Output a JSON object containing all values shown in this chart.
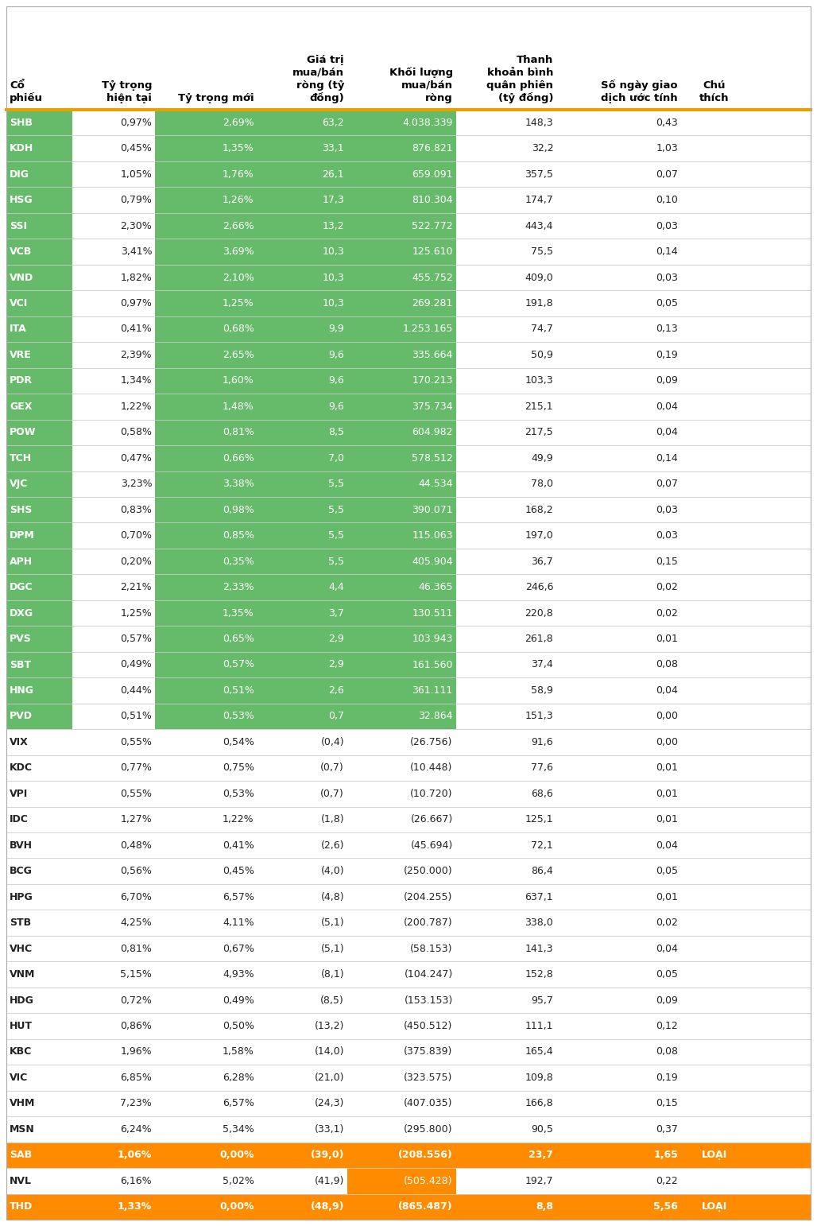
{
  "headers_line1": [
    "",
    "",
    "",
    "Giá trị",
    "",
    "Thanh",
    "",
    ""
  ],
  "headers_line2": [
    "",
    "",
    "",
    "mua/bán",
    "Khối lượng",
    "khoản bình",
    "",
    ""
  ],
  "headers_line3": [
    "Cổ",
    "Tỷ trọng",
    "",
    "ròng (tỷ",
    "mua/bán",
    "quân phiên",
    "Số ngày giao",
    "Chú"
  ],
  "headers_line4": [
    "phiếu",
    "hiện tại",
    "Tỷ trọng mới",
    "đồng)",
    "ròng",
    "(tỷ đồng)",
    "dịch ước tính",
    "thích"
  ],
  "rows": [
    [
      "SHB",
      "0,97%",
      "2,69%",
      "63,2",
      "4.038.339",
      "148,3",
      "0,43",
      "",
      "green"
    ],
    [
      "KDH",
      "0,45%",
      "1,35%",
      "33,1",
      "876.821",
      "32,2",
      "1,03",
      "",
      "green"
    ],
    [
      "DIG",
      "1,05%",
      "1,76%",
      "26,1",
      "659.091",
      "357,5",
      "0,07",
      "",
      "green"
    ],
    [
      "HSG",
      "0,79%",
      "1,26%",
      "17,3",
      "810.304",
      "174,7",
      "0,10",
      "",
      "green"
    ],
    [
      "SSI",
      "2,30%",
      "2,66%",
      "13,2",
      "522.772",
      "443,4",
      "0,03",
      "",
      "green"
    ],
    [
      "VCB",
      "3,41%",
      "3,69%",
      "10,3",
      "125.610",
      "75,5",
      "0,14",
      "",
      "green"
    ],
    [
      "VND",
      "1,82%",
      "2,10%",
      "10,3",
      "455.752",
      "409,0",
      "0,03",
      "",
      "green"
    ],
    [
      "VCI",
      "0,97%",
      "1,25%",
      "10,3",
      "269.281",
      "191,8",
      "0,05",
      "",
      "green"
    ],
    [
      "ITA",
      "0,41%",
      "0,68%",
      "9,9",
      "1.253.165",
      "74,7",
      "0,13",
      "",
      "green"
    ],
    [
      "VRE",
      "2,39%",
      "2,65%",
      "9,6",
      "335.664",
      "50,9",
      "0,19",
      "",
      "green"
    ],
    [
      "PDR",
      "1,34%",
      "1,60%",
      "9,6",
      "170.213",
      "103,3",
      "0,09",
      "",
      "green"
    ],
    [
      "GEX",
      "1,22%",
      "1,48%",
      "9,6",
      "375.734",
      "215,1",
      "0,04",
      "",
      "green"
    ],
    [
      "POW",
      "0,58%",
      "0,81%",
      "8,5",
      "604.982",
      "217,5",
      "0,04",
      "",
      "green"
    ],
    [
      "TCH",
      "0,47%",
      "0,66%",
      "7,0",
      "578.512",
      "49,9",
      "0,14",
      "",
      "green"
    ],
    [
      "VJC",
      "3,23%",
      "3,38%",
      "5,5",
      "44.534",
      "78,0",
      "0,07",
      "",
      "green"
    ],
    [
      "SHS",
      "0,83%",
      "0,98%",
      "5,5",
      "390.071",
      "168,2",
      "0,03",
      "",
      "green"
    ],
    [
      "DPM",
      "0,70%",
      "0,85%",
      "5,5",
      "115.063",
      "197,0",
      "0,03",
      "",
      "green"
    ],
    [
      "APH",
      "0,20%",
      "0,35%",
      "5,5",
      "405.904",
      "36,7",
      "0,15",
      "",
      "green"
    ],
    [
      "DGC",
      "2,21%",
      "2,33%",
      "4,4",
      "46.365",
      "246,6",
      "0,02",
      "",
      "green"
    ],
    [
      "DXG",
      "1,25%",
      "1,35%",
      "3,7",
      "130.511",
      "220,8",
      "0,02",
      "",
      "green"
    ],
    [
      "PVS",
      "0,57%",
      "0,65%",
      "2,9",
      "103.943",
      "261,8",
      "0,01",
      "",
      "green"
    ],
    [
      "SBT",
      "0,49%",
      "0,57%",
      "2,9",
      "161.560",
      "37,4",
      "0,08",
      "",
      "green"
    ],
    [
      "HNG",
      "0,44%",
      "0,51%",
      "2,6",
      "361.111",
      "58,9",
      "0,04",
      "",
      "green"
    ],
    [
      "PVD",
      "0,51%",
      "0,53%",
      "0,7",
      "32.864",
      "151,3",
      "0,00",
      "",
      "green"
    ],
    [
      "VIX",
      "0,55%",
      "0,54%",
      "(0,4)",
      "(26.756)",
      "91,6",
      "0,00",
      "",
      "white"
    ],
    [
      "KDC",
      "0,77%",
      "0,75%",
      "(0,7)",
      "(10.448)",
      "77,6",
      "0,01",
      "",
      "white"
    ],
    [
      "VPI",
      "0,55%",
      "0,53%",
      "(0,7)",
      "(10.720)",
      "68,6",
      "0,01",
      "",
      "white"
    ],
    [
      "IDC",
      "1,27%",
      "1,22%",
      "(1,8)",
      "(26.667)",
      "125,1",
      "0,01",
      "",
      "white"
    ],
    [
      "BVH",
      "0,48%",
      "0,41%",
      "(2,6)",
      "(45.694)",
      "72,1",
      "0,04",
      "",
      "white"
    ],
    [
      "BCG",
      "0,56%",
      "0,45%",
      "(4,0)",
      "(250.000)",
      "86,4",
      "0,05",
      "",
      "white"
    ],
    [
      "HPG",
      "6,70%",
      "6,57%",
      "(4,8)",
      "(204.255)",
      "637,1",
      "0,01",
      "",
      "white"
    ],
    [
      "STB",
      "4,25%",
      "4,11%",
      "(5,1)",
      "(200.787)",
      "338,0",
      "0,02",
      "",
      "white"
    ],
    [
      "VHC",
      "0,81%",
      "0,67%",
      "(5,1)",
      "(58.153)",
      "141,3",
      "0,04",
      "",
      "white"
    ],
    [
      "VNM",
      "5,15%",
      "4,93%",
      "(8,1)",
      "(104.247)",
      "152,8",
      "0,05",
      "",
      "white"
    ],
    [
      "HDG",
      "0,72%",
      "0,49%",
      "(8,5)",
      "(153.153)",
      "95,7",
      "0,09",
      "",
      "white"
    ],
    [
      "HUT",
      "0,86%",
      "0,50%",
      "(13,2)",
      "(450.512)",
      "111,1",
      "0,12",
      "",
      "white"
    ],
    [
      "KBC",
      "1,96%",
      "1,58%",
      "(14,0)",
      "(375.839)",
      "165,4",
      "0,08",
      "",
      "white"
    ],
    [
      "VIC",
      "6,85%",
      "6,28%",
      "(21,0)",
      "(323.575)",
      "109,8",
      "0,19",
      "",
      "white"
    ],
    [
      "VHM",
      "7,23%",
      "6,57%",
      "(24,3)",
      "(407.035)",
      "166,8",
      "0,15",
      "",
      "white"
    ],
    [
      "MSN",
      "6,24%",
      "5,34%",
      "(33,1)",
      "(295.800)",
      "90,5",
      "0,37",
      "",
      "white"
    ],
    [
      "SAB",
      "1,06%",
      "0,00%",
      "(39,0)",
      "(208.556)",
      "23,7",
      "1,65",
      "LOẠI",
      "orange"
    ],
    [
      "NVL",
      "6,16%",
      "5,02%",
      "(41,9)",
      "(505.428)",
      "192,7",
      "0,22",
      "",
      "nvl"
    ],
    [
      "THD",
      "1,33%",
      "0,00%",
      "(48,9)",
      "(865.487)",
      "8,8",
      "5,56",
      "LOẠI",
      "orange"
    ]
  ],
  "green_color": "#66BB6A",
  "orange_color": "#FF8C00",
  "orange_line_color": "#E8A000",
  "grid_color": "#CCCCCC",
  "text_dark": "#222222"
}
